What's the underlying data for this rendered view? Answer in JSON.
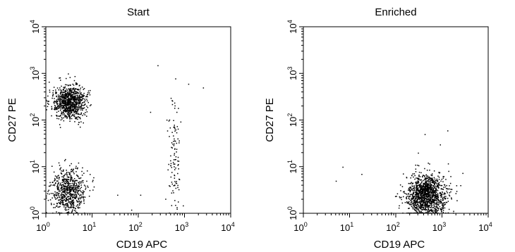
{
  "chart_data": [
    {
      "type": "scatter",
      "title": "Start",
      "xlabel": "CD19 APC",
      "ylabel": "CD27 PE",
      "xscale": "log",
      "yscale": "log",
      "xlim": [
        1,
        10000
      ],
      "ylim": [
        1,
        10000
      ],
      "x_ticks": [
        1,
        10,
        100,
        1000,
        10000
      ],
      "y_ticks": [
        1,
        10,
        100,
        1000,
        10000
      ],
      "grid": false,
      "clusters": [
        {
          "x_center": 3.2,
          "y_center": 250,
          "x_spread_decades": 0.17,
          "y_spread_decades": 0.18,
          "n_points": 900
        },
        {
          "x_center": 3.0,
          "y_center": 3.0,
          "x_spread_decades": 0.18,
          "y_spread_decades": 0.25,
          "n_points": 650
        },
        {
          "x_center": 600,
          "y_center": 12,
          "x_spread_decades": 0.07,
          "y_spread_decades": 0.75,
          "n_points": 110
        }
      ],
      "points": [
        [
          260,
          1500
        ],
        [
          1200,
          600
        ],
        [
          500,
          300
        ],
        [
          2500,
          500
        ],
        [
          180,
          150
        ],
        [
          70,
          1.2
        ],
        [
          35,
          2.5
        ],
        [
          110,
          2.5
        ]
      ]
    },
    {
      "type": "scatter",
      "title": "Enriched",
      "xlabel": "CD19 APC",
      "ylabel": "CD27 PE",
      "xscale": "log",
      "yscale": "log",
      "xlim": [
        1,
        10000
      ],
      "ylim": [
        1,
        10000
      ],
      "x_ticks": [
        1,
        10,
        100,
        1000,
        10000
      ],
      "y_ticks": [
        1,
        10,
        100,
        1000,
        10000
      ],
      "grid": false,
      "clusters": [
        {
          "x_center": 450,
          "y_center": 2.5,
          "x_spread_decades": 0.22,
          "y_spread_decades": 0.23,
          "n_points": 1300
        }
      ],
      "points": [
        [
          7,
          10
        ],
        [
          5,
          5
        ],
        [
          18,
          7
        ],
        [
          420,
          50
        ],
        [
          1300,
          60
        ],
        [
          300,
          20
        ],
        [
          900,
          30
        ]
      ]
    }
  ]
}
